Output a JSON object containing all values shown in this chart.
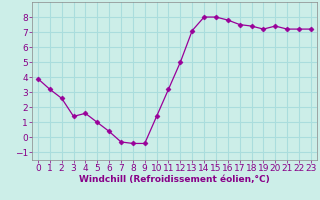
{
  "x": [
    0,
    1,
    2,
    3,
    4,
    5,
    6,
    7,
    8,
    9,
    10,
    11,
    12,
    13,
    14,
    15,
    16,
    17,
    18,
    19,
    20,
    21,
    22,
    23
  ],
  "y": [
    3.9,
    3.2,
    2.6,
    1.4,
    1.6,
    1.0,
    0.4,
    -0.3,
    -0.4,
    -0.4,
    1.4,
    3.2,
    5.0,
    7.1,
    8.0,
    8.0,
    7.8,
    7.5,
    7.4,
    7.2,
    7.4,
    7.2,
    7.2,
    7.2
  ],
  "line_color": "#990099",
  "marker": "D",
  "marker_size": 2.5,
  "bg_color": "#cceee8",
  "grid_color": "#aadddd",
  "xlabel": "Windchill (Refroidissement éolien,°C)",
  "xlabel_fontsize": 6.5,
  "xlabel_color": "#880088",
  "ylim": [
    -1.5,
    9.0
  ],
  "xlim": [
    -0.5,
    23.5
  ],
  "yticks": [
    -1,
    0,
    1,
    2,
    3,
    4,
    5,
    6,
    7,
    8
  ],
  "xticks": [
    0,
    1,
    2,
    3,
    4,
    5,
    6,
    7,
    8,
    9,
    10,
    11,
    12,
    13,
    14,
    15,
    16,
    17,
    18,
    19,
    20,
    21,
    22,
    23
  ],
  "tick_fontsize": 6.5,
  "tick_color": "#880088"
}
